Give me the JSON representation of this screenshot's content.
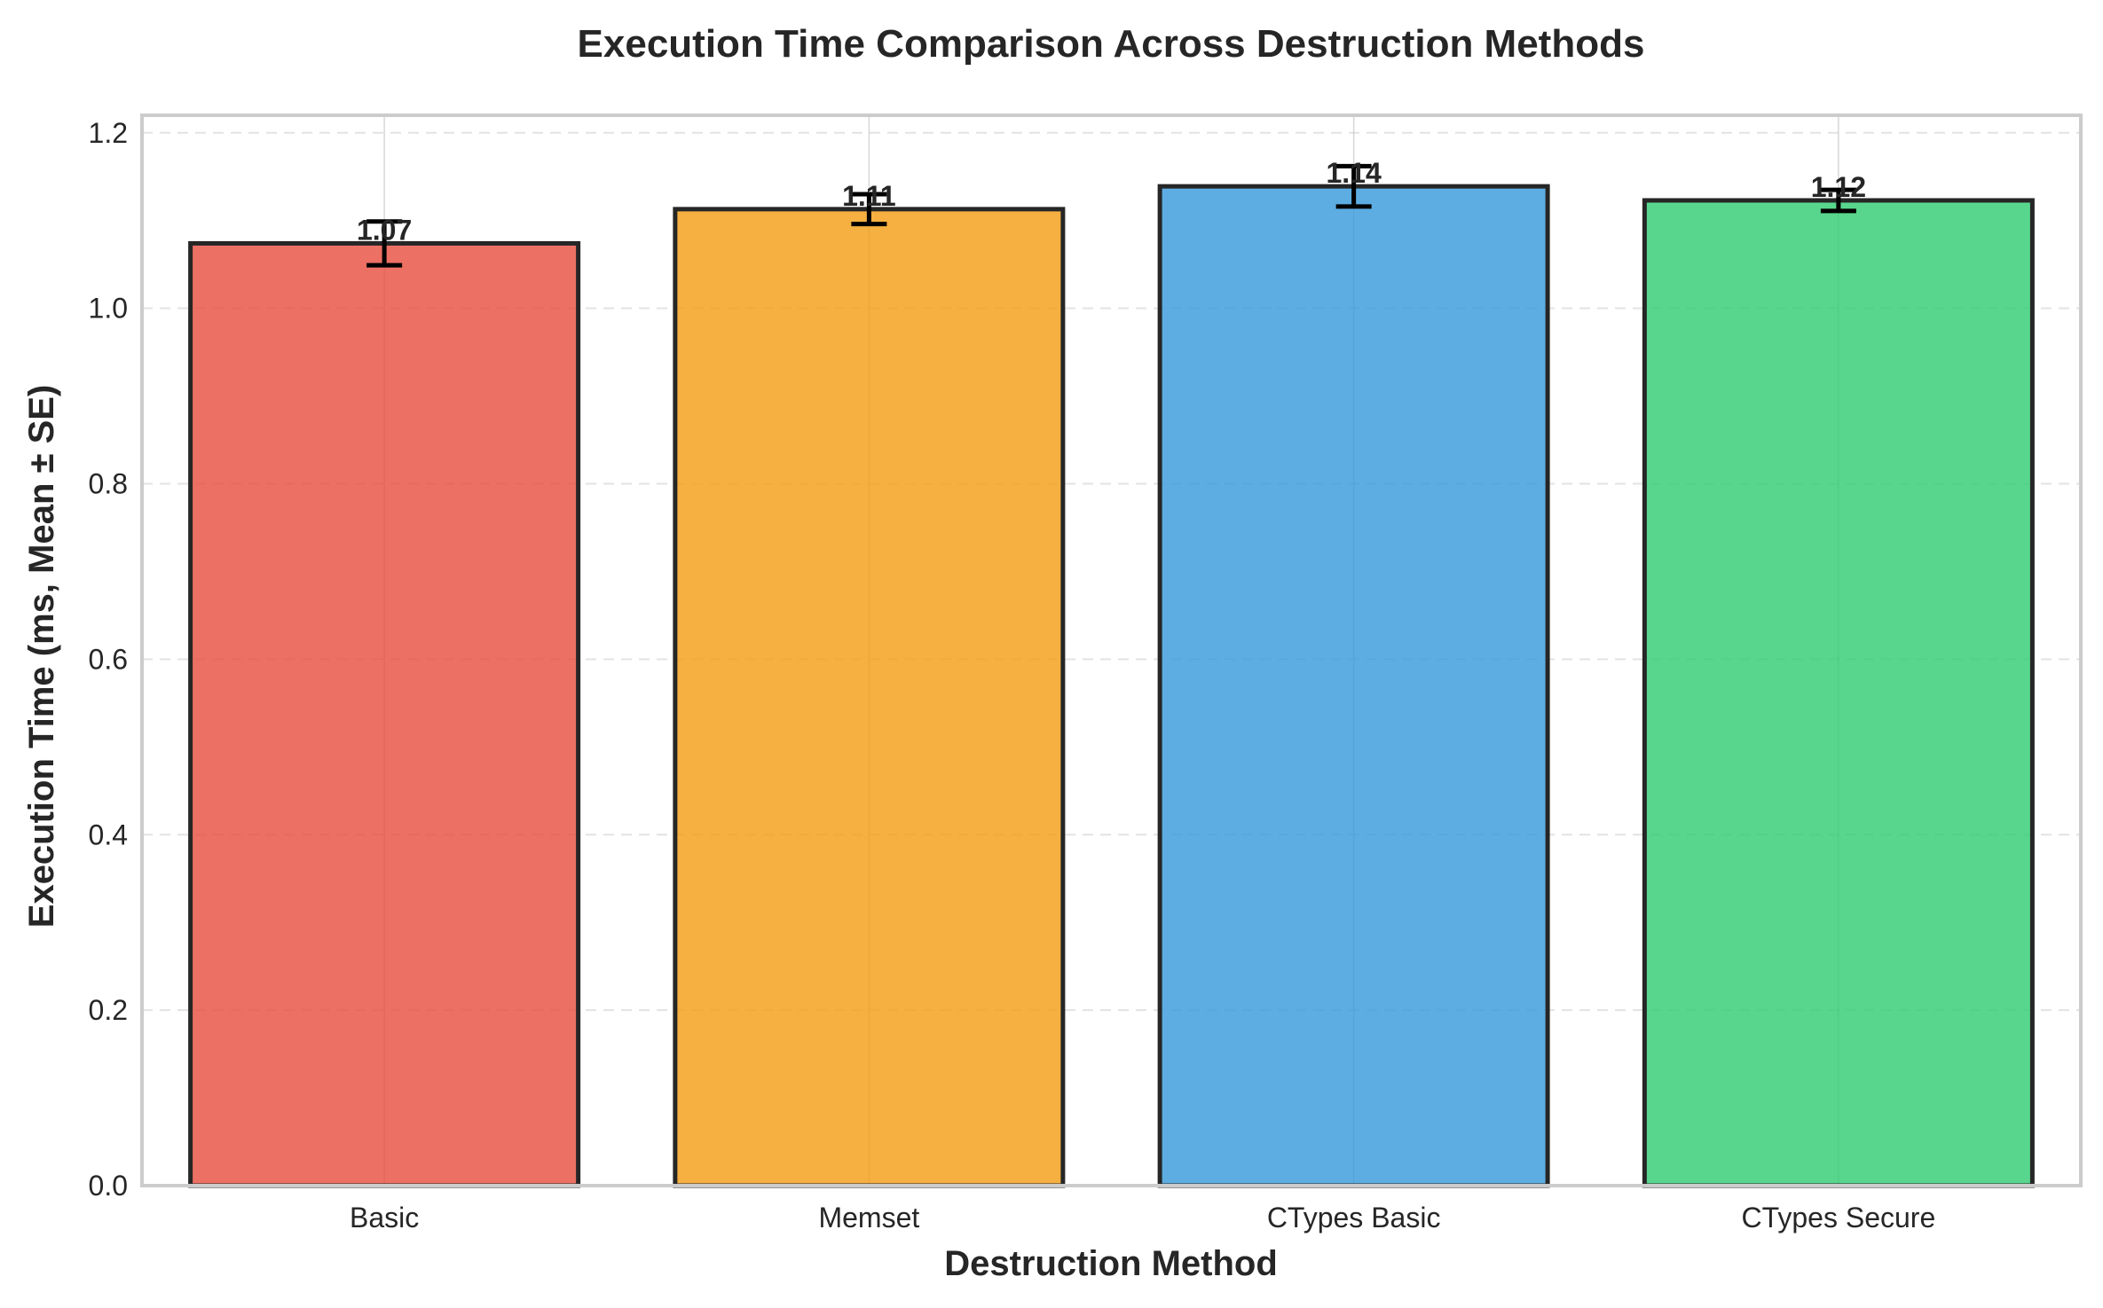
{
  "chart_data": {
    "type": "bar",
    "title": "Execution Time Comparison Across Destruction Methods",
    "xlabel": "Destruction Method",
    "ylabel": "Execution Time (ms, Mean ± SE)",
    "categories": [
      "Basic",
      "Memset",
      "CTypes Basic",
      "CTypes Secure"
    ],
    "values": [
      1.074,
      1.113,
      1.139,
      1.123
    ],
    "errors": [
      0.025,
      0.017,
      0.023,
      0.012
    ],
    "data_labels": [
      "1.07",
      "1.11",
      "1.14",
      "1.12"
    ],
    "colors": [
      "#e74c3c",
      "#f39c12",
      "#3498db",
      "#2ecc71"
    ],
    "ylim": [
      0,
      1.22
    ],
    "yticks": [
      0.0,
      0.2,
      0.4,
      0.6,
      0.8,
      1.0,
      1.2
    ],
    "ytick_labels": [
      "0.0",
      "0.2",
      "0.4",
      "0.6",
      "0.8",
      "1.0",
      "1.2"
    ],
    "grid": true,
    "legend": "none"
  }
}
